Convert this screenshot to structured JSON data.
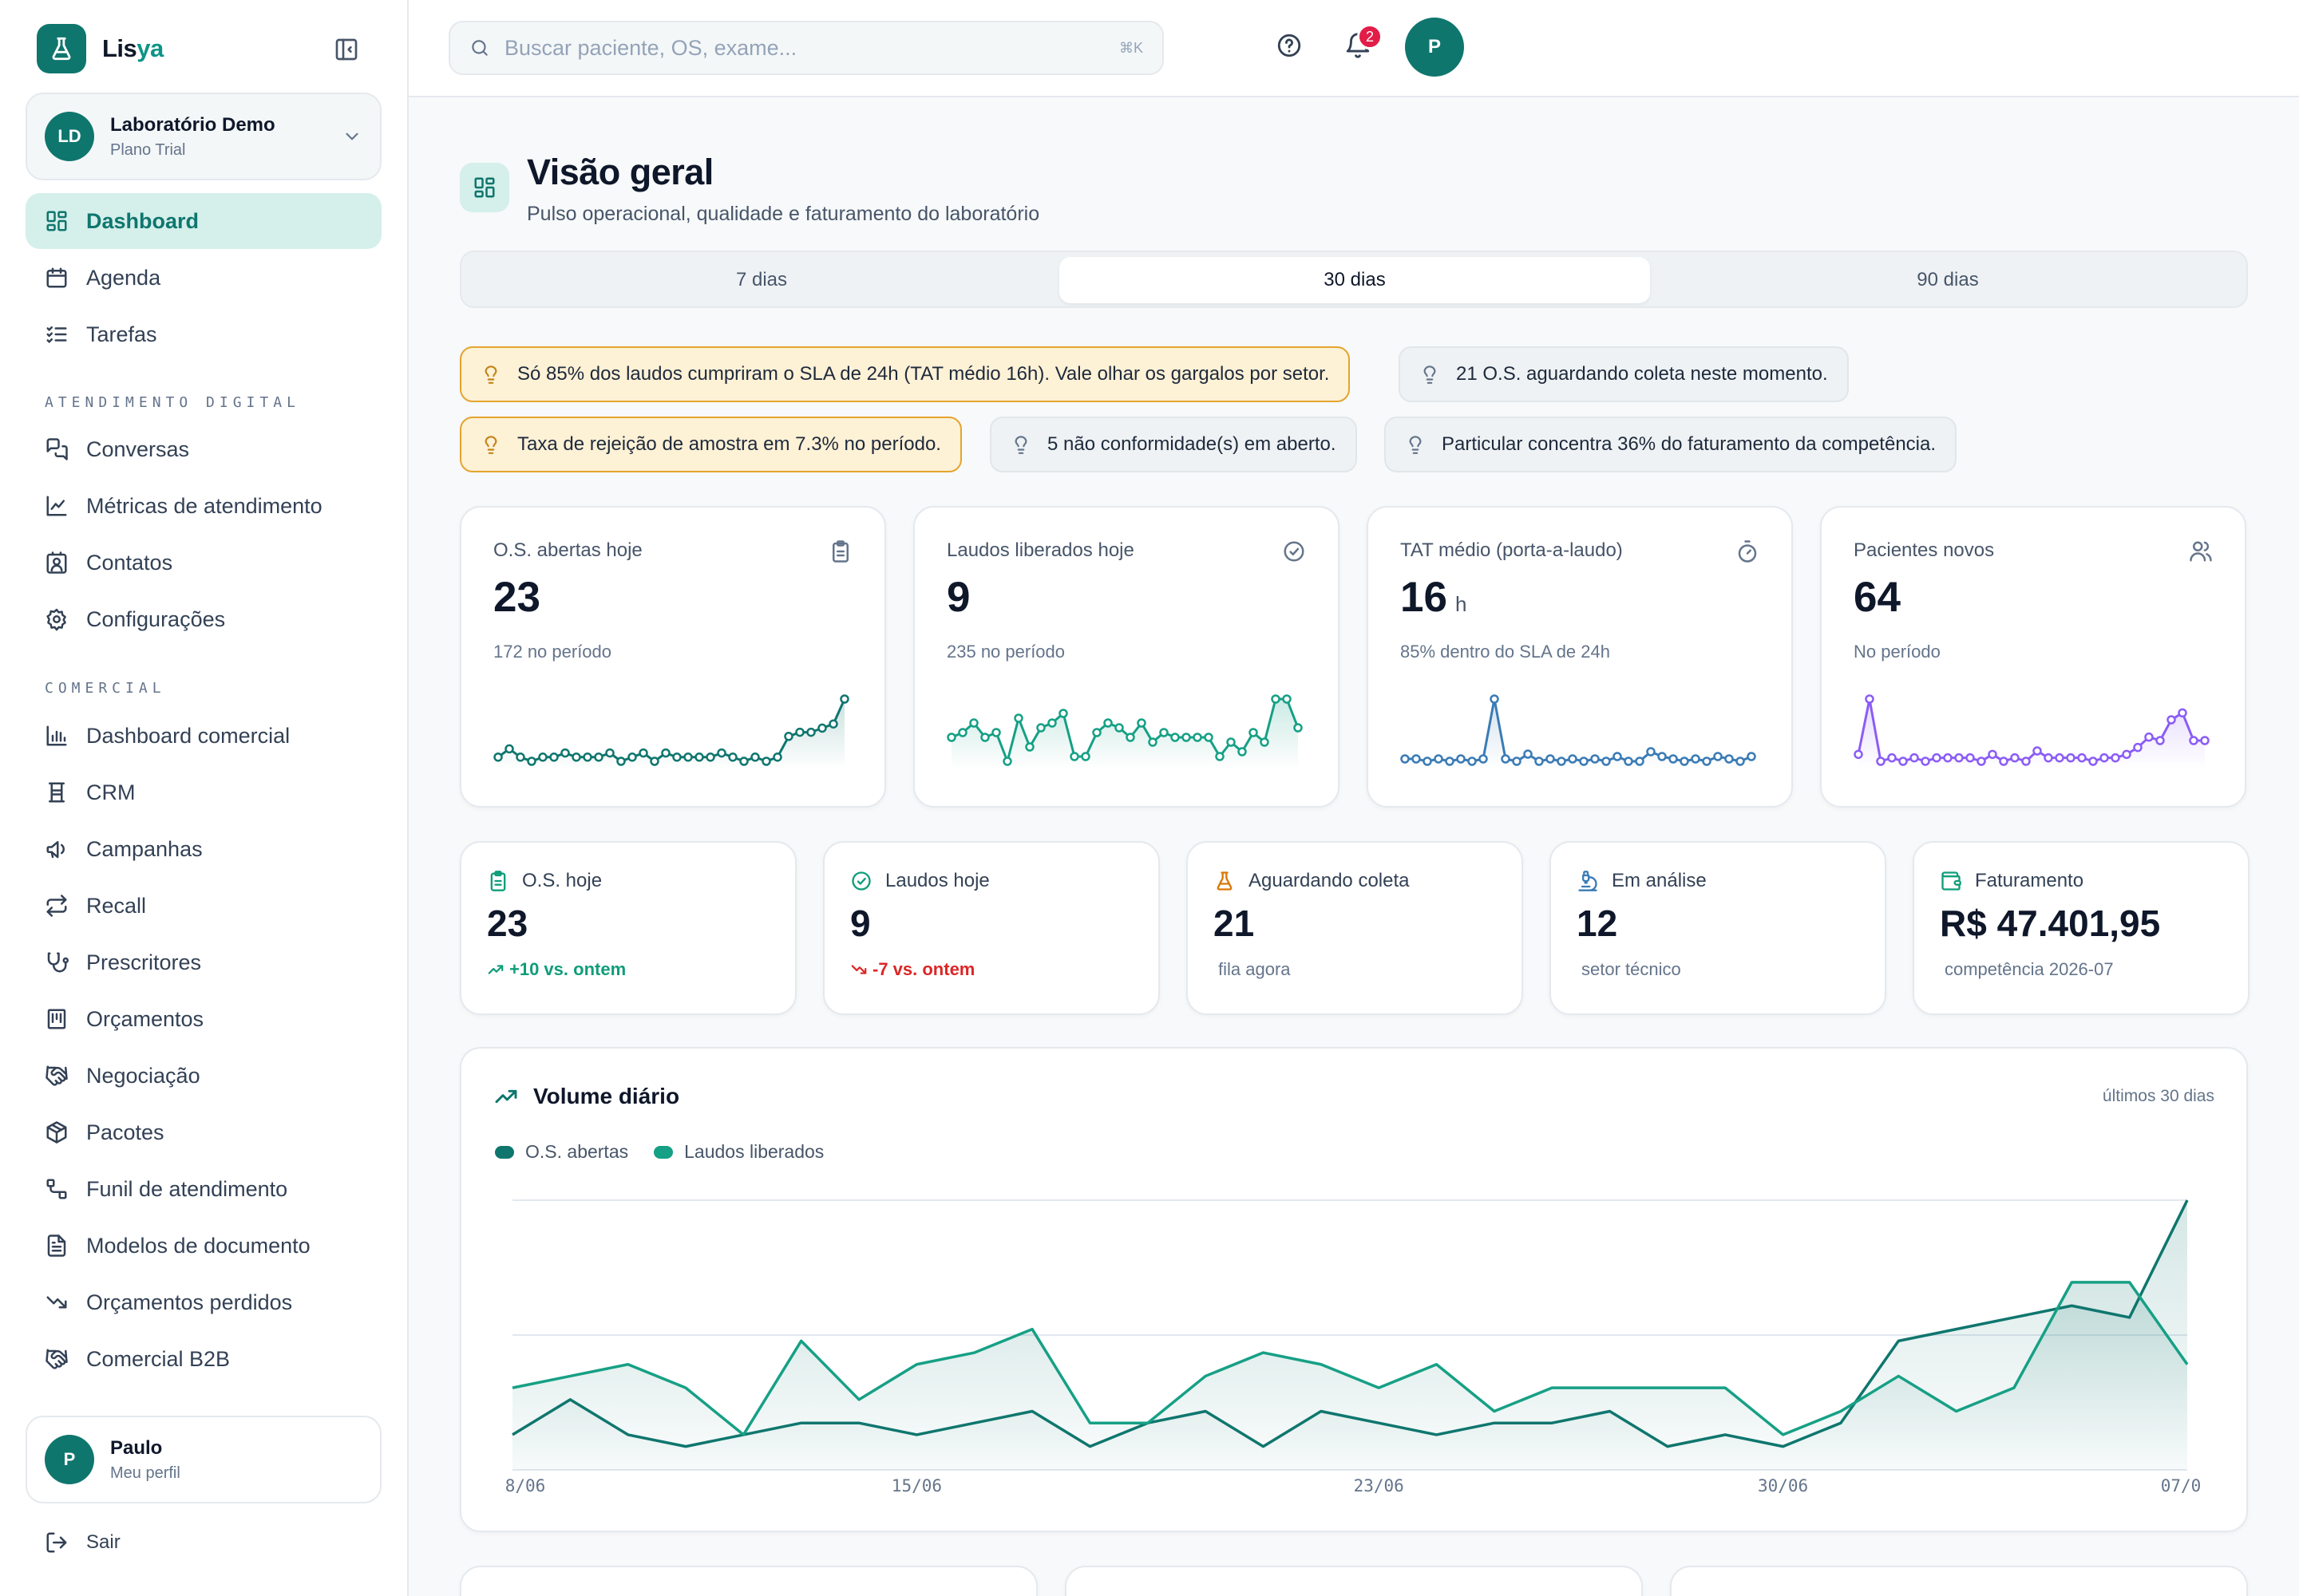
{
  "brand": {
    "name_a": "Lis",
    "name_b": "ya"
  },
  "org": {
    "initials": "LD",
    "name": "Laboratório Demo",
    "plan": "Plano Trial"
  },
  "nav": {
    "main": [
      {
        "label": "Dashboard",
        "icon": "grid-icon",
        "active": true
      },
      {
        "label": "Agenda",
        "icon": "calendar-icon"
      },
      {
        "label": "Tarefas",
        "icon": "checklist-icon"
      }
    ],
    "section_digital": "ATENDIMENTO DIGITAL",
    "digital": [
      {
        "label": "Conversas",
        "icon": "chat-icon"
      },
      {
        "label": "Métricas de atendimento",
        "icon": "line-chart-icon"
      },
      {
        "label": "Contatos",
        "icon": "contact-icon"
      },
      {
        "label": "Configurações",
        "icon": "gear-icon"
      }
    ],
    "section_comercial": "COMERCIAL",
    "comercial": [
      {
        "label": "Dashboard comercial",
        "icon": "bar-chart-icon"
      },
      {
        "label": "CRM",
        "icon": "crm-icon"
      },
      {
        "label": "Campanhas",
        "icon": "megaphone-icon"
      },
      {
        "label": "Recall",
        "icon": "repeat-icon"
      },
      {
        "label": "Prescritores",
        "icon": "stethoscope-icon"
      },
      {
        "label": "Orçamentos",
        "icon": "receipt-icon"
      },
      {
        "label": "Negociação",
        "icon": "handshake-icon"
      },
      {
        "label": "Pacotes",
        "icon": "package-icon"
      },
      {
        "label": "Funil de atendimento",
        "icon": "funnel-icon"
      },
      {
        "label": "Modelos de documento",
        "icon": "document-icon"
      },
      {
        "label": "Orçamentos perdidos",
        "icon": "trend-down-icon"
      },
      {
        "label": "Comercial B2B",
        "icon": "handshake-icon"
      }
    ]
  },
  "profile": {
    "initial": "P",
    "name": "Paulo",
    "sub": "Meu perfil",
    "logout": "Sair"
  },
  "topbar": {
    "search_placeholder": "Buscar paciente, OS, exame...",
    "shortcut": "⌘K",
    "notifications": "2",
    "avatar": "P"
  },
  "page": {
    "title": "Visão geral",
    "subtitle": "Pulso operacional, qualidade e faturamento do laboratório"
  },
  "tabs": [
    {
      "label": "7 dias"
    },
    {
      "label": "30 dias",
      "active": true
    },
    {
      "label": "90 dias"
    }
  ],
  "alerts": [
    {
      "text": "Só 85% dos laudos cumpriram o SLA de 24h (TAT médio 16h). Vale olhar os gargalos por setor.",
      "level": "warn"
    },
    {
      "text": "21 O.S. aguardando coleta neste momento.",
      "level": "info"
    },
    {
      "text": "Taxa de rejeição de amostra em 7.3% no período.",
      "level": "warn"
    },
    {
      "text": "5 não conformidade(s) em aberto.",
      "level": "info"
    },
    {
      "text": "Particular concentra 36% do faturamento da competência.",
      "level": "info"
    }
  ],
  "kpis": [
    {
      "label": "O.S. abertas hoje",
      "value": "23",
      "unit": "",
      "sub": "172 no período",
      "icon": "clipboard-icon",
      "color": "#0f766e",
      "spark": [
        3,
        5,
        3,
        2,
        3,
        3,
        4,
        3,
        3,
        3,
        4,
        2,
        3,
        4,
        2,
        4,
        3,
        3,
        3,
        3,
        4,
        3,
        2,
        3,
        2,
        3,
        8,
        9,
        9,
        10,
        11,
        17
      ]
    },
    {
      "label": "Laudos liberados hoje",
      "value": "9",
      "unit": "",
      "sub": "235 no período",
      "icon": "check-circle-icon",
      "color": "#16a085",
      "spark": [
        7,
        8,
        10,
        7,
        8,
        2,
        11,
        5,
        9,
        10,
        12,
        3,
        3,
        8,
        10,
        9,
        7,
        10,
        6,
        8,
        7,
        7,
        7,
        7,
        3,
        6,
        4,
        8,
        6,
        15,
        15,
        9
      ]
    },
    {
      "label": "TAT médio (porta-a-laudo)",
      "value": "16",
      "unit": "h",
      "sub": "85% dentro do SLA de 24h",
      "icon": "timer-icon",
      "color": "#3a7bb5",
      "spark": [
        5,
        5,
        4,
        5,
        4,
        5,
        4,
        5,
        30,
        5,
        4,
        7,
        4,
        5,
        4,
        5,
        4,
        5,
        4,
        6,
        4,
        4,
        8,
        6,
        5,
        4,
        5,
        4,
        6,
        5,
        4,
        6
      ]
    },
    {
      "label": "Pacientes novos",
      "value": "64",
      "unit": "",
      "sub": "No período",
      "icon": "users-icon",
      "color": "#8b5cf6",
      "spark": [
        4,
        20,
        2,
        3,
        2,
        3,
        2,
        3,
        3,
        3,
        3,
        2,
        4,
        2,
        3,
        2,
        5,
        3,
        3,
        3,
        3,
        2,
        3,
        3,
        4,
        6,
        9,
        8,
        14,
        16,
        8,
        8
      ]
    }
  ],
  "stats": [
    {
      "label": "O.S. hoje",
      "value": "23",
      "sub": "+10 vs. ontem",
      "trend": "up",
      "icon": "clipboard-icon"
    },
    {
      "label": "Laudos hoje",
      "value": "9",
      "sub": "-7 vs. ontem",
      "trend": "down",
      "icon": "check-circle-icon"
    },
    {
      "label": "Aguardando coleta",
      "value": "21",
      "sub": "fila agora",
      "trend": "none",
      "icon": "flask-icon"
    },
    {
      "label": "Em análise",
      "value": "12",
      "sub": "setor técnico",
      "trend": "none",
      "icon": "microscope-icon"
    },
    {
      "label": "Faturamento",
      "value": "R$ 47.401,95",
      "sub": "competência 2026-07",
      "trend": "none",
      "icon": "wallet-icon"
    }
  ],
  "colors": {
    "primary": "#0f766e",
    "accent": "#16a085",
    "warn": "#e4a42e",
    "danger": "#dc2626"
  },
  "chart_data": {
    "type": "line",
    "title": "Volume diário",
    "range_label": "últimos 30 dias",
    "x": [
      "8/06",
      "9/06",
      "10/06",
      "11/06",
      "12/06",
      "13/06",
      "14/06",
      "15/06",
      "16/06",
      "17/06",
      "18/06",
      "19/06",
      "20/06",
      "21/06",
      "22/06",
      "23/06",
      "24/06",
      "25/06",
      "26/06",
      "27/06",
      "28/06",
      "29/06",
      "30/06",
      "01/07",
      "02/07",
      "03/07",
      "04/07",
      "05/07",
      "06/07",
      "07/07"
    ],
    "xticks": [
      "8/06",
      "15/06",
      "23/06",
      "30/06",
      "07/0"
    ],
    "series": [
      {
        "name": "O.S. abertas",
        "color": "#0f766e",
        "values": [
          3,
          6,
          3,
          2,
          3,
          4,
          4,
          3,
          4,
          5,
          2,
          4,
          5,
          2,
          5,
          4,
          3,
          4,
          4,
          5,
          2,
          3,
          2,
          4,
          11,
          12,
          13,
          14,
          13,
          23
        ]
      },
      {
        "name": "Laudos liberados",
        "color": "#16a085",
        "values": [
          7,
          8,
          9,
          7,
          3,
          11,
          6,
          9,
          10,
          12,
          4,
          4,
          8,
          10,
          9,
          7,
          9,
          5,
          7,
          7,
          7,
          7,
          3,
          5,
          8,
          5,
          7,
          16,
          16,
          9
        ]
      }
    ],
    "ylim": [
      0,
      23
    ],
    "grid": true,
    "legend": "top-left"
  }
}
